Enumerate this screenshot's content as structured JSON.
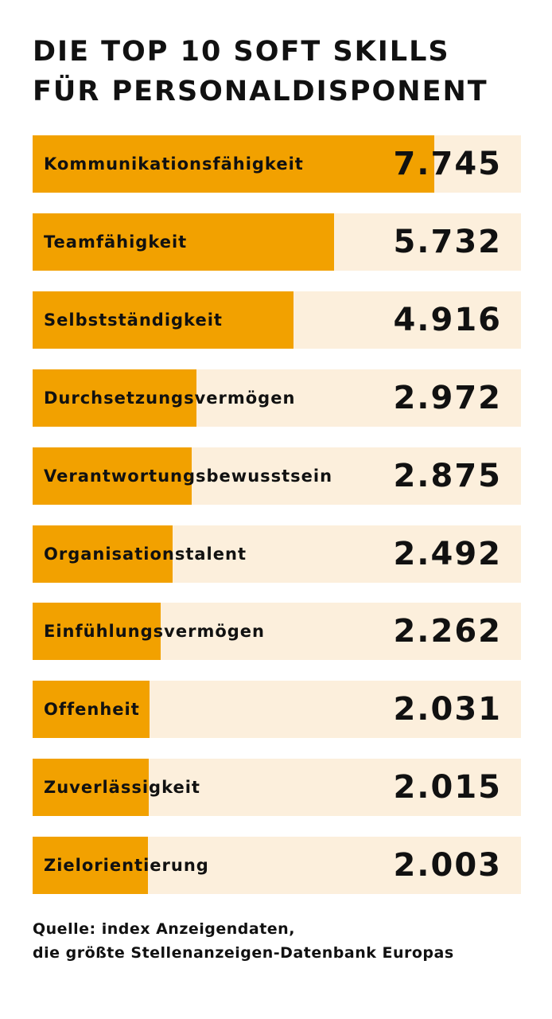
{
  "chart_data": {
    "type": "bar",
    "orientation": "horizontal",
    "title": "DIE TOP 10 SOFT SKILLS FÜR PERSONALDISPONENT",
    "categories": [
      "Kommunikationsfähigkeit",
      "Teamfähigkeit",
      "Selbstständigkeit",
      "Durchsetzungsvermögen",
      "Verantwortungsbewusstsein",
      "Organisationstalent",
      "Einfühlungsvermögen",
      "Offenheit",
      "Zuverlässigkeit",
      "Zielorientierung"
    ],
    "values": [
      7745,
      5732,
      4916,
      2972,
      2875,
      2492,
      2262,
      2031,
      2015,
      2003
    ],
    "value_labels": [
      "7.745",
      "5.732",
      "4.916",
      "2.972",
      "2.875",
      "2.492",
      "2.262",
      "2.031",
      "2.015",
      "2.003"
    ],
    "colors": {
      "bar": "#F2A100",
      "track": "#FCEFDC"
    },
    "grid": false
  },
  "source": {
    "line1": "Quelle: index Anzeigendaten,",
    "line2": "die größte Stellenanzeigen-Datenbank Europas"
  }
}
